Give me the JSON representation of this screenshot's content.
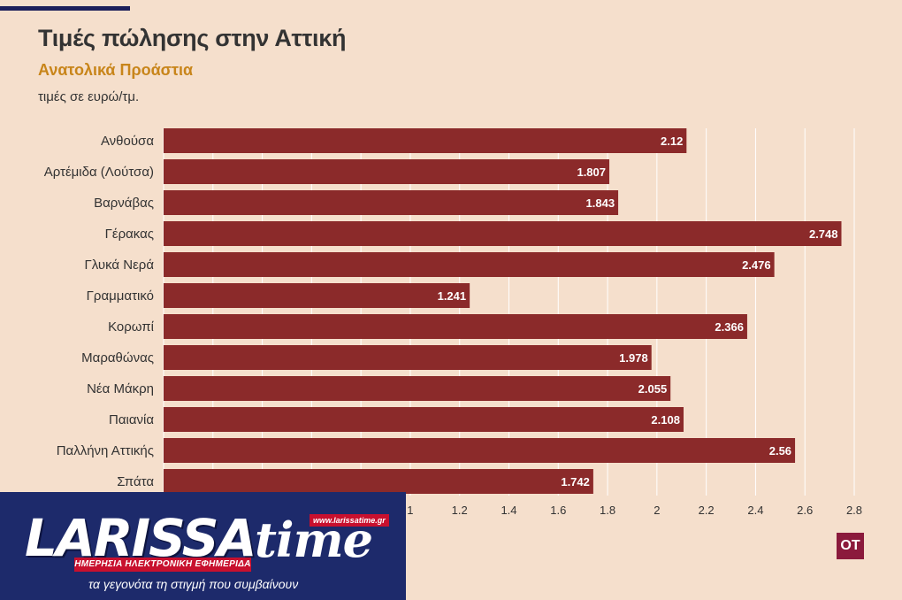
{
  "header": {
    "title": "Τιμές πώλησης στην Αττική",
    "subtitle": "Ανατολικά Προάστια",
    "note": "τιμές σε ευρώ/τμ."
  },
  "chart_data": {
    "type": "bar",
    "orientation": "horizontal",
    "categories": [
      "Ανθούσα",
      "Αρτέμιδα (Λούτσα)",
      "Βαρνάβας",
      "Γέρακας",
      "Γλυκά Νερά",
      "Γραμματικό",
      "Κορωπί",
      "Μαραθώνας",
      "Νέα Μάκρη",
      "Παιανία",
      "Παλλήνη Αττικής",
      "Σπάτα"
    ],
    "values": [
      2.12,
      1.807,
      1.843,
      2.748,
      2.476,
      1.241,
      2.366,
      1.978,
      2.055,
      2.108,
      2.56,
      1.742
    ],
    "value_labels": [
      "2.12",
      "1.807",
      "1.843",
      "2.748",
      "2.476",
      "1.241",
      "2.366",
      "1.978",
      "2.055",
      "2.108",
      "2.56",
      "1.742"
    ],
    "xlim": [
      0,
      2.8
    ],
    "x_ticks": [
      "0",
      "0.2",
      "0.4",
      "0.6",
      "0.8",
      "1",
      "1.2",
      "1.4",
      "1.6",
      "1.8",
      "2",
      "2.2",
      "2.4",
      "2.6",
      "2.8"
    ],
    "grid": true,
    "bar_color": "#8b2a2a"
  },
  "logo": {
    "word_a": "LARISSA",
    "word_b": "time",
    "strip": "ΗΜΕΡΗΣΙΑ ΗΛΕΚΤΡΟΝΙΚΗ ΕΦΗΜΕΡΙΔΑ",
    "url": "www.larissatime.gr",
    "tagline": "τα γεγονότα τη στιγμή που συμβαίνουν"
  },
  "badge": {
    "text": "OT"
  }
}
